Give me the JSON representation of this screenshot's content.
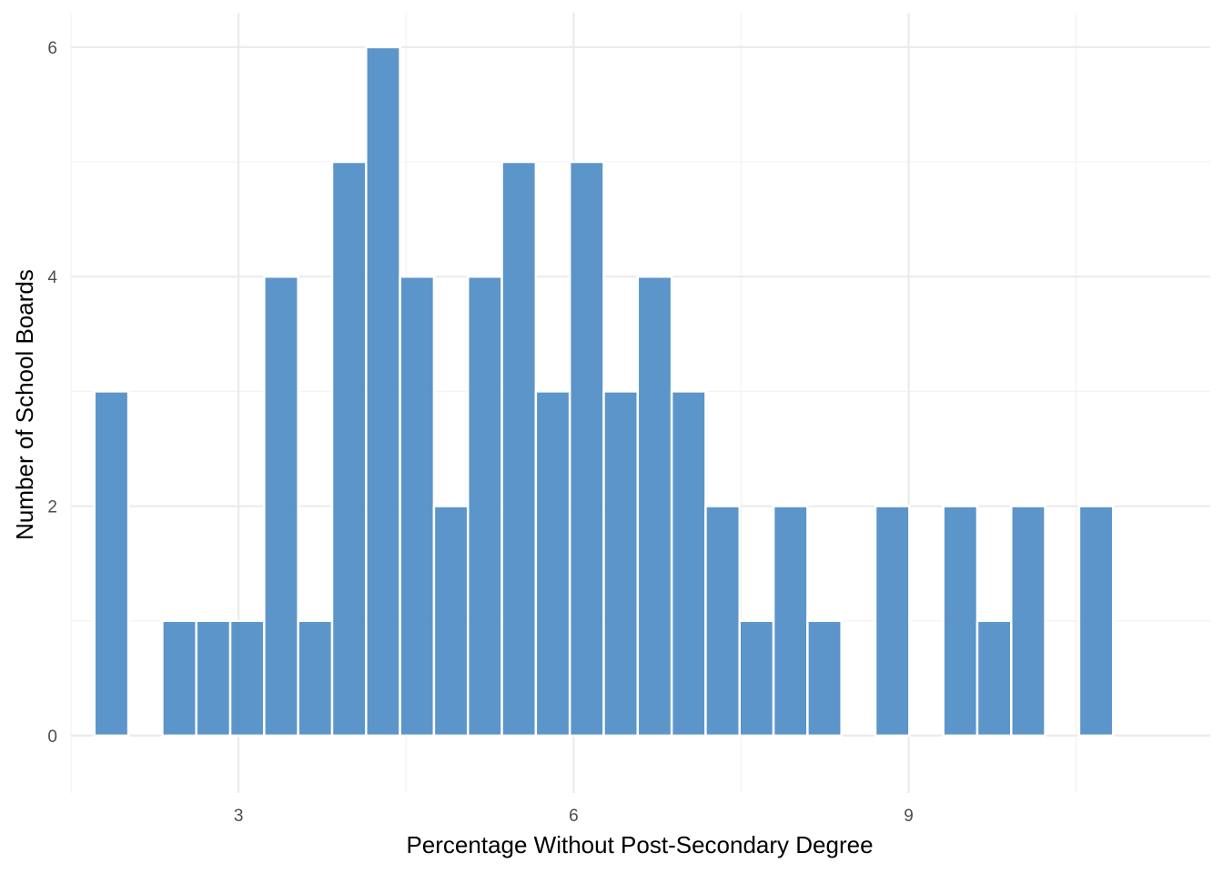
{
  "chart_data": {
    "type": "bar",
    "subtype": "histogram",
    "title": "",
    "xlabel": "Percentage Without Post-Secondary Degree",
    "ylabel": "Number of School Boards",
    "xlim": [
      1.5,
      11.7
    ],
    "ylim": [
      -0.5,
      6.3
    ],
    "x_ticks": [
      3,
      6,
      9
    ],
    "x_tick_labels": [
      "3",
      "6",
      "9"
    ],
    "y_ticks": [
      0,
      2,
      4,
      6
    ],
    "y_tick_labels": [
      "0",
      "2",
      "4",
      "6"
    ],
    "bin_width": 0.304,
    "bin_start": 1.71,
    "counts": [
      3,
      0,
      1,
      1,
      1,
      4,
      1,
      5,
      6,
      4,
      2,
      4,
      5,
      3,
      5,
      3,
      4,
      3,
      2,
      1,
      2,
      1,
      0,
      2,
      0,
      2,
      1,
      2,
      0,
      2
    ],
    "bar_color": "#4a8ac4",
    "grid": true,
    "theme": "minimal"
  }
}
